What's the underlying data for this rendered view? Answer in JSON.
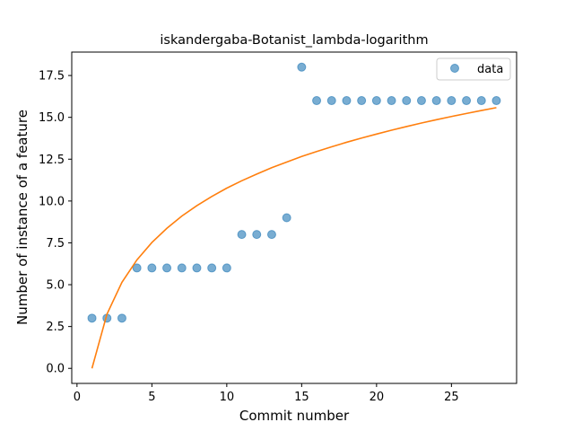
{
  "chart_data": {
    "type": "scatter",
    "title": "iskandergaba-Botanist_lambda-logarithm",
    "xlabel": "Commit number",
    "ylabel": "Number of instance of a feature",
    "xlim": [
      -0.35,
      29.35
    ],
    "ylim": [
      -0.9,
      18.9
    ],
    "xticks": [
      0,
      5,
      10,
      15,
      20,
      25
    ],
    "xtick_labels": [
      "0",
      "5",
      "10",
      "15",
      "20",
      "25"
    ],
    "yticks": [
      0,
      2.5,
      5,
      7.5,
      10,
      12.5,
      15,
      17.5
    ],
    "ytick_labels": [
      "0.0",
      "2.5",
      "5.0",
      "7.5",
      "10.0",
      "12.5",
      "15.0",
      "17.5"
    ],
    "grid": false,
    "legend_position": "top-right",
    "series": [
      {
        "name": "data",
        "kind": "scatter",
        "color": "#1f77b4",
        "x": [
          1,
          2,
          3,
          4,
          5,
          6,
          7,
          8,
          9,
          10,
          11,
          12,
          13,
          14,
          15,
          16,
          17,
          18,
          19,
          20,
          21,
          22,
          23,
          24,
          25,
          26,
          27,
          28
        ],
        "y": [
          3,
          3,
          3,
          6,
          6,
          6,
          6,
          6,
          6,
          6,
          8,
          8,
          8,
          9,
          18,
          16,
          16,
          16,
          16,
          16,
          16,
          16,
          16,
          16,
          16,
          16,
          16,
          16
        ]
      },
      {
        "kind": "line",
        "color": "#ff7f0e",
        "x": [
          1,
          2,
          3,
          4,
          5,
          6,
          7,
          8,
          9,
          10,
          11,
          12,
          13,
          14,
          15,
          16,
          17,
          18,
          19,
          20,
          21,
          22,
          23,
          24,
          25,
          26,
          27,
          28
        ],
        "y": [
          0,
          3.24,
          5.14,
          6.48,
          7.52,
          8.37,
          9.1,
          9.72,
          10.27,
          10.77,
          11.21,
          11.61,
          11.99,
          12.33,
          12.66,
          12.96,
          13.24,
          13.51,
          13.76,
          14.0,
          14.23,
          14.45,
          14.66,
          14.86,
          15.05,
          15.23,
          15.41,
          15.58
        ]
      }
    ]
  }
}
